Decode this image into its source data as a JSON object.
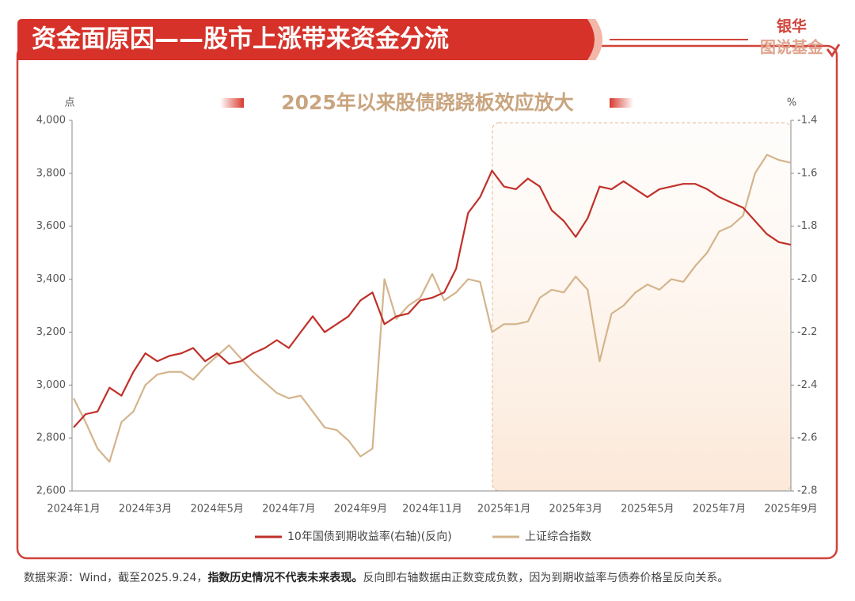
{
  "header": {
    "title": "资金面原因——股市上涨带来资金分流",
    "logo": [
      "银华",
      "图说基金"
    ]
  },
  "chart_data": {
    "type": "line",
    "title": "2025年以来股债跷跷板效应放大",
    "ylabel": "点",
    "y2label": "%",
    "categories": [
      "2024年1月",
      null,
      null,
      null,
      null,
      null,
      "2024年3月",
      null,
      null,
      null,
      null,
      null,
      "2024年5月",
      null,
      null,
      null,
      null,
      null,
      "2024年7月",
      null,
      null,
      null,
      null,
      null,
      "2024年9月",
      null,
      null,
      null,
      null,
      null,
      "2024年11月",
      null,
      null,
      null,
      null,
      null,
      "2025年1月",
      null,
      null,
      null,
      null,
      null,
      "2025年3月",
      null,
      null,
      null,
      null,
      null,
      "2025年5月",
      null,
      null,
      null,
      null,
      null,
      "2025年7月",
      null,
      null,
      null,
      null,
      null,
      "2025年9月"
    ],
    "series": [
      {
        "name": "10年国债到期收益率(右轴)(反向)",
        "color": "#c0302a",
        "axis": "y2",
        "values": [
          -2.56,
          -2.51,
          -2.5,
          -2.41,
          -2.44,
          -2.35,
          -2.28,
          -2.31,
          -2.29,
          -2.28,
          -2.26,
          -2.31,
          -2.28,
          -2.32,
          -2.31,
          -2.28,
          -2.26,
          -2.23,
          -2.26,
          -2.2,
          -2.14,
          -2.2,
          -2.17,
          -2.14,
          -2.08,
          -2.05,
          -2.17,
          -2.14,
          -2.13,
          -2.08,
          -2.07,
          -2.05,
          -1.96,
          -1.75,
          -1.69,
          -1.59,
          -1.65,
          -1.66,
          -1.62,
          -1.65,
          -1.74,
          -1.78,
          -1.84,
          -1.77,
          -1.65,
          -1.66,
          -1.63,
          -1.66,
          -1.69,
          -1.66,
          -1.65,
          -1.64,
          -1.64,
          -1.66,
          -1.69,
          -1.71,
          -1.73,
          -1.78,
          -1.83,
          -1.86,
          -1.87
        ]
      },
      {
        "name": "上证综合指数",
        "color": "#d4b48c",
        "values": [
          2950,
          2860,
          2760,
          2710,
          2860,
          2900,
          3000,
          3040,
          3050,
          3050,
          3020,
          3070,
          3110,
          3150,
          3100,
          3050,
          3010,
          2970,
          2950,
          2960,
          2900,
          2840,
          2830,
          2790,
          2730,
          2760,
          3400,
          3250,
          3300,
          3330,
          3420,
          3320,
          3350,
          3400,
          3390,
          3200,
          3230,
          3230,
          3240,
          3330,
          3360,
          3350,
          3410,
          3360,
          3090,
          3270,
          3300,
          3350,
          3380,
          3360,
          3400,
          3390,
          3450,
          3500,
          3580,
          3600,
          3640,
          3800,
          3870,
          3850,
          3840
        ]
      }
    ],
    "ylim": [
      2600,
      4000
    ],
    "yticks": [
      {
        "value": 2600,
        "label": "2,600"
      },
      {
        "value": 2800,
        "label": "2,800"
      },
      {
        "value": 3000,
        "label": "3,000"
      },
      {
        "value": 3200,
        "label": "3,200"
      },
      {
        "value": 3400,
        "label": "3,400"
      },
      {
        "value": 3600,
        "label": "3,600"
      },
      {
        "value": 3800,
        "label": "3,800"
      },
      {
        "value": 4000,
        "label": "4,000"
      }
    ],
    "y2lim": [
      -2.8,
      -1.4
    ],
    "y2ticks": [
      -2.8,
      -2.6,
      -2.4,
      -2.2,
      {
        "value": -2,
        "label": "-2.0"
      },
      -1.8,
      -1.6,
      -1.4
    ],
    "grid": false,
    "legend": "bottom"
  },
  "footnote": [
    "数据来源：Wind，截至2025.9.24，",
    "指数历史情况不代表未来表现。",
    "反向即右轴数据由正数变成负数，因为到期收益率与债券价格呈反向关系。"
  ]
}
